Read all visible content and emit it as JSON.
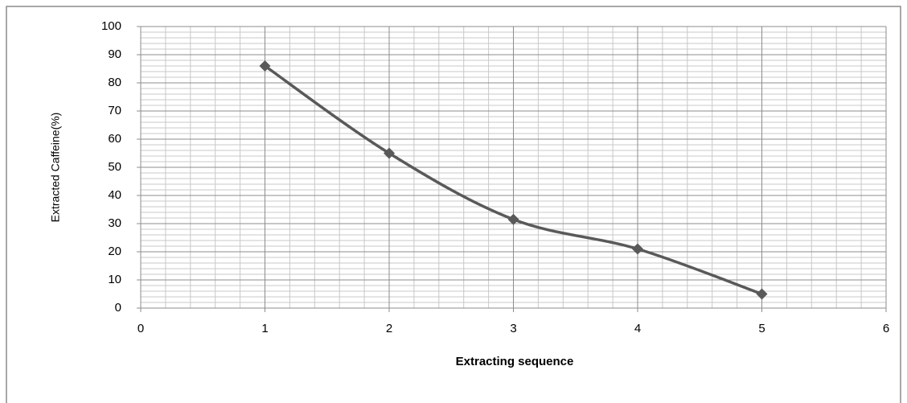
{
  "chart_data": {
    "type": "line",
    "smooth": true,
    "marker": "diamond",
    "x_label": "Extracting sequence",
    "y_label": "Extracted Caffeine(%)",
    "x": [
      1,
      2,
      3,
      4,
      5
    ],
    "series": [
      {
        "color": "#595959",
        "values": [
          86,
          55,
          31.5,
          21,
          5
        ]
      }
    ],
    "xlim": [
      0,
      6
    ],
    "xticks": [
      0,
      1,
      2,
      3,
      4,
      5,
      6
    ],
    "ylim": [
      0,
      100
    ],
    "yticks": [
      0,
      10,
      20,
      30,
      40,
      50,
      60,
      70,
      80,
      90,
      100
    ],
    "grid": true,
    "minor_grid": true
  }
}
